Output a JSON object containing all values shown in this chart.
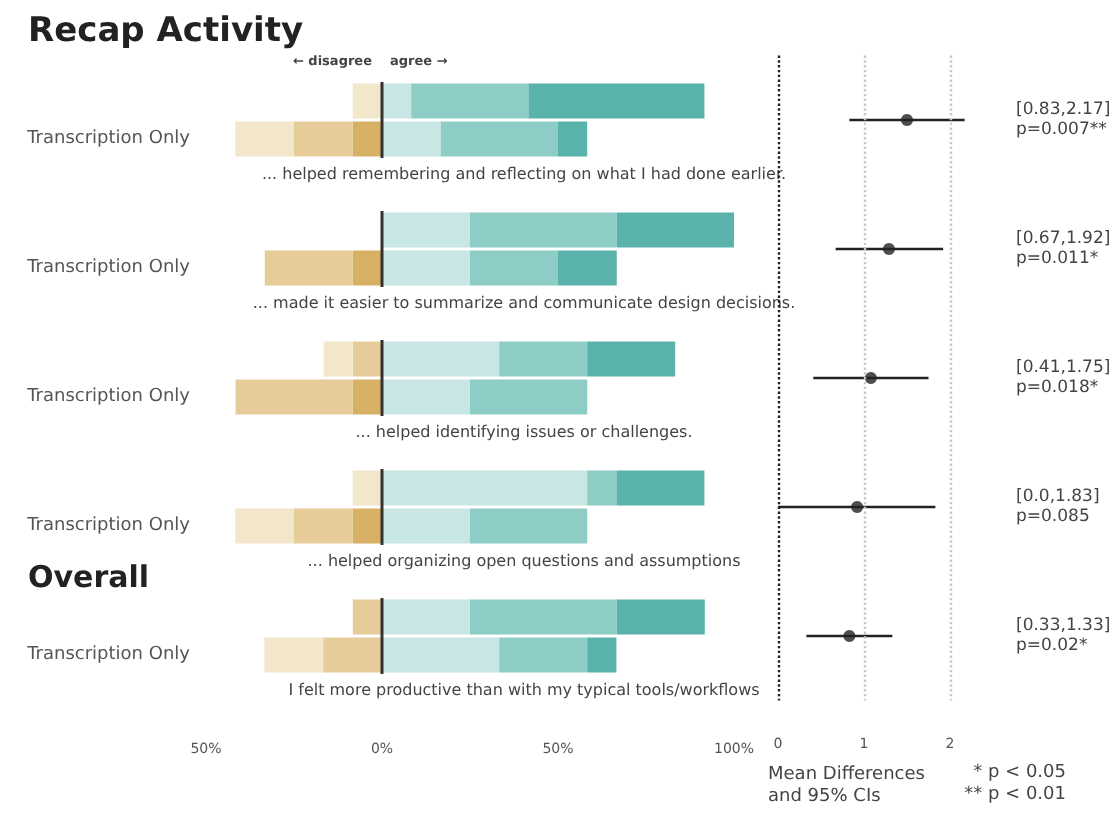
{
  "chart_data": [
    {
      "type": "bar",
      "orientation": "horizontal",
      "stacked": true,
      "title": "Recap Activity",
      "categories": [
        null,
        "Transcription Only",
        null,
        "Transcription Only",
        null,
        "Transcription Only",
        null,
        "Transcription Only",
        null,
        "Transcription Only"
      ],
      "series": [
        {
          "color": "#d6b064",
          "values": [
            0,
            -8.3,
            0,
            -8.3,
            0,
            -8.3,
            0,
            -8.3,
            0,
            0
          ]
        },
        {
          "color": "#e6cc98",
          "values": [
            0,
            -16.7,
            0,
            -25,
            -8.3,
            -33.3,
            0,
            -16.7,
            -8.3,
            -16.7
          ]
        },
        {
          "color": "#f2e6cb",
          "values": [
            -8.3,
            -16.7,
            0,
            0,
            -8.3,
            0,
            -8.3,
            -16.7,
            0,
            -16.7
          ]
        },
        {
          "color": "#c8e6e3",
          "values": [
            8.3,
            16.7,
            25,
            25,
            33.3,
            25,
            58.3,
            25,
            25,
            33.3
          ]
        },
        {
          "color": "#8ecdc6",
          "values": [
            33.3,
            33.3,
            41.7,
            25,
            25,
            33.3,
            8.3,
            33.3,
            41.7,
            25
          ]
        },
        {
          "color": "#5ab3aa",
          "values": [
            50,
            8.3,
            33.3,
            16.7,
            25,
            0,
            25,
            0,
            25,
            8.3
          ]
        }
      ],
      "xlim": [
        -50,
        100
      ],
      "xticks": [
        {
          "value": -50,
          "label": "50%"
        },
        {
          "value": 0,
          "label": "0%"
        },
        {
          "value": 50,
          "label": "50%"
        },
        {
          "value": 100,
          "label": "100%"
        }
      ],
      "ref_lines": [
        {
          "axis": "x",
          "value": 0,
          "color": "#333333"
        }
      ],
      "annotations": [
        "... helped remembering and reflecting on what I had done earlier.",
        "... made it easier to summarize and communicate design decisions.",
        "... helped identifying issues or challenges.",
        "... helped organizing open questions and assumptions",
        "I felt more productive than with my typical tools/workflows",
        "Overall",
        "← disagree",
        "agree →"
      ]
    },
    {
      "type": "scatter",
      "orientation": "horizontal",
      "categories": [
        null,
        null,
        null,
        null,
        null
      ],
      "values": [
        1.5,
        1.29,
        1.08,
        0.92,
        0.83
      ],
      "color": "#222222",
      "marker": "circle",
      "errors": [
        [
          0.83,
          2.17
        ],
        [
          0.67,
          1.92
        ],
        [
          0.41,
          1.75
        ],
        [
          0.0,
          1.83
        ],
        [
          0.33,
          1.33
        ]
      ],
      "xlim": [
        0,
        2
      ],
      "xticks": [
        0,
        1,
        2
      ],
      "ref_lines": [
        {
          "axis": "x",
          "value": 0,
          "color": "#222222",
          "line_style": "dotted"
        },
        {
          "axis": "x",
          "value": 1,
          "color": "#c8c8c8",
          "line_style": "dotted"
        },
        {
          "axis": "x",
          "value": 2,
          "color": "#c8c8c8",
          "line_style": "dotted"
        }
      ],
      "xlabel": "Mean Differences\nand 95% CIs",
      "annotations": [
        "[0.83,2.17]\np=0.007**",
        "[0.67,1.92]\np=0.011*",
        "[0.41,1.75]\np=0.018*",
        "[0.0,1.83]\np=0.085",
        "[0.33,1.33]\np=0.02*",
        "* p < 0.05",
        "** p < 0.01"
      ]
    }
  ]
}
